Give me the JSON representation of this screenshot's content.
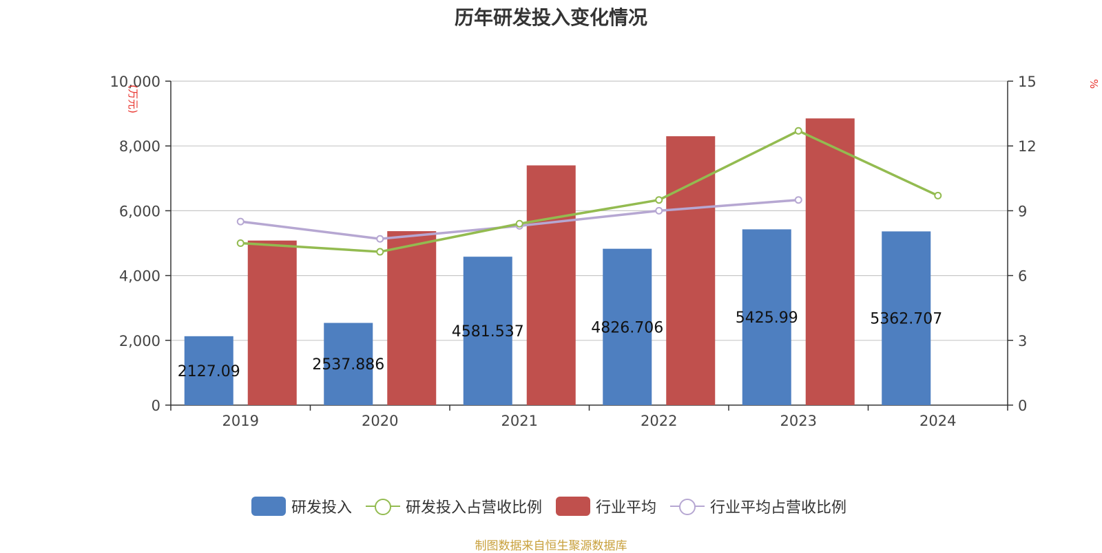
{
  "chart_data": {
    "type": "bar",
    "title": "历年研发投入变化情况",
    "categories": [
      "2019",
      "2020",
      "2021",
      "2022",
      "2023",
      "2024"
    ],
    "left_axis": {
      "unit": "(万元)",
      "ylim": [
        0,
        10000
      ],
      "ticks": [
        "0",
        "2,000",
        "4,000",
        "6,000",
        "8,000",
        "10,000"
      ],
      "tick_values": [
        0,
        2000,
        4000,
        6000,
        8000,
        10000
      ]
    },
    "right_axis": {
      "unit": "%",
      "ylim": [
        0,
        15
      ],
      "ticks": [
        "0",
        "3",
        "6",
        "9",
        "12",
        "15"
      ],
      "tick_values": [
        0,
        3,
        6,
        9,
        12,
        15
      ]
    },
    "series": [
      {
        "name": "研发投入",
        "type": "bar",
        "axis": "left",
        "color": "#4e7fc0",
        "values": [
          2127.09,
          2537.886,
          4581.537,
          4826.706,
          5425.99,
          5362.707
        ],
        "labels": [
          "2127.09",
          "2537.886",
          "4581.537",
          "4826.706",
          "5425.99",
          "5362.707"
        ]
      },
      {
        "name": "研发投入占营收比例",
        "type": "line",
        "axis": "right",
        "color": "#93bb50",
        "values": [
          7.5,
          7.1,
          8.4,
          9.5,
          12.7,
          9.7
        ]
      },
      {
        "name": "行业平均",
        "type": "bar",
        "axis": "left",
        "color": "#c0504d",
        "values": [
          5080,
          5370,
          7400,
          8300,
          8850,
          null
        ]
      },
      {
        "name": "行业平均占营收比例",
        "type": "line",
        "axis": "right",
        "color": "#b6a7d2",
        "values": [
          8.5,
          7.7,
          8.3,
          9.0,
          9.5,
          null
        ]
      }
    ],
    "grid": true,
    "legend_position": "bottom"
  },
  "source": "制图数据来自恒生聚源数据库"
}
